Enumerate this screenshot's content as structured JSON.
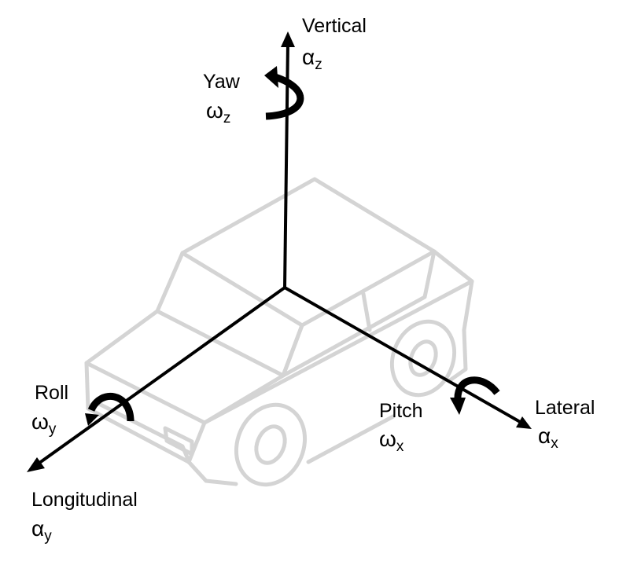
{
  "axes": {
    "vertical": {
      "name": "Vertical",
      "symbol": "α",
      "subscript": "z",
      "rotation": {
        "name": "Yaw",
        "symbol": "ω",
        "subscript": "z"
      }
    },
    "longitudinal": {
      "name": "Longitudinal",
      "symbol": "α",
      "subscript": "y",
      "rotation": {
        "name": "Roll",
        "symbol": "ω",
        "subscript": "y"
      }
    },
    "lateral": {
      "name": "Lateral",
      "symbol": "α",
      "subscript": "x",
      "rotation": {
        "name": "Pitch",
        "symbol": "ω",
        "subscript": "x"
      }
    }
  },
  "colors": {
    "axis": "#000000",
    "vehicle_outline": "#d4d4d4",
    "background": "#ffffff"
  },
  "icons": {
    "vehicle": "car-outline-icon",
    "rotation": "curved-arrow-icon"
  }
}
